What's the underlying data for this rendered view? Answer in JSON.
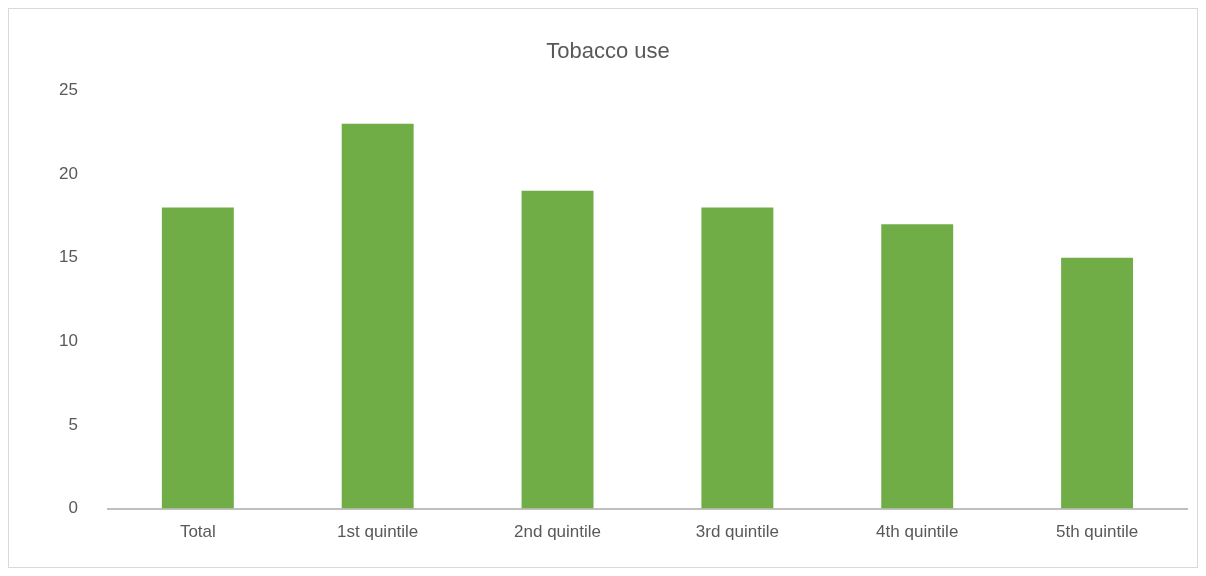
{
  "chart_data": {
    "type": "bar",
    "title": "Tobacco use",
    "categories": [
      "Total",
      "1st quintile",
      "2nd quintile",
      "3rd quintile",
      "4th quintile",
      "5th quintile"
    ],
    "values": [
      18,
      23,
      19,
      18,
      17,
      15
    ],
    "color": "#70ad47",
    "ylim": [
      0,
      25
    ],
    "yticks": [
      0,
      5,
      10,
      15,
      20,
      25
    ],
    "grid": false,
    "legend": false
  }
}
